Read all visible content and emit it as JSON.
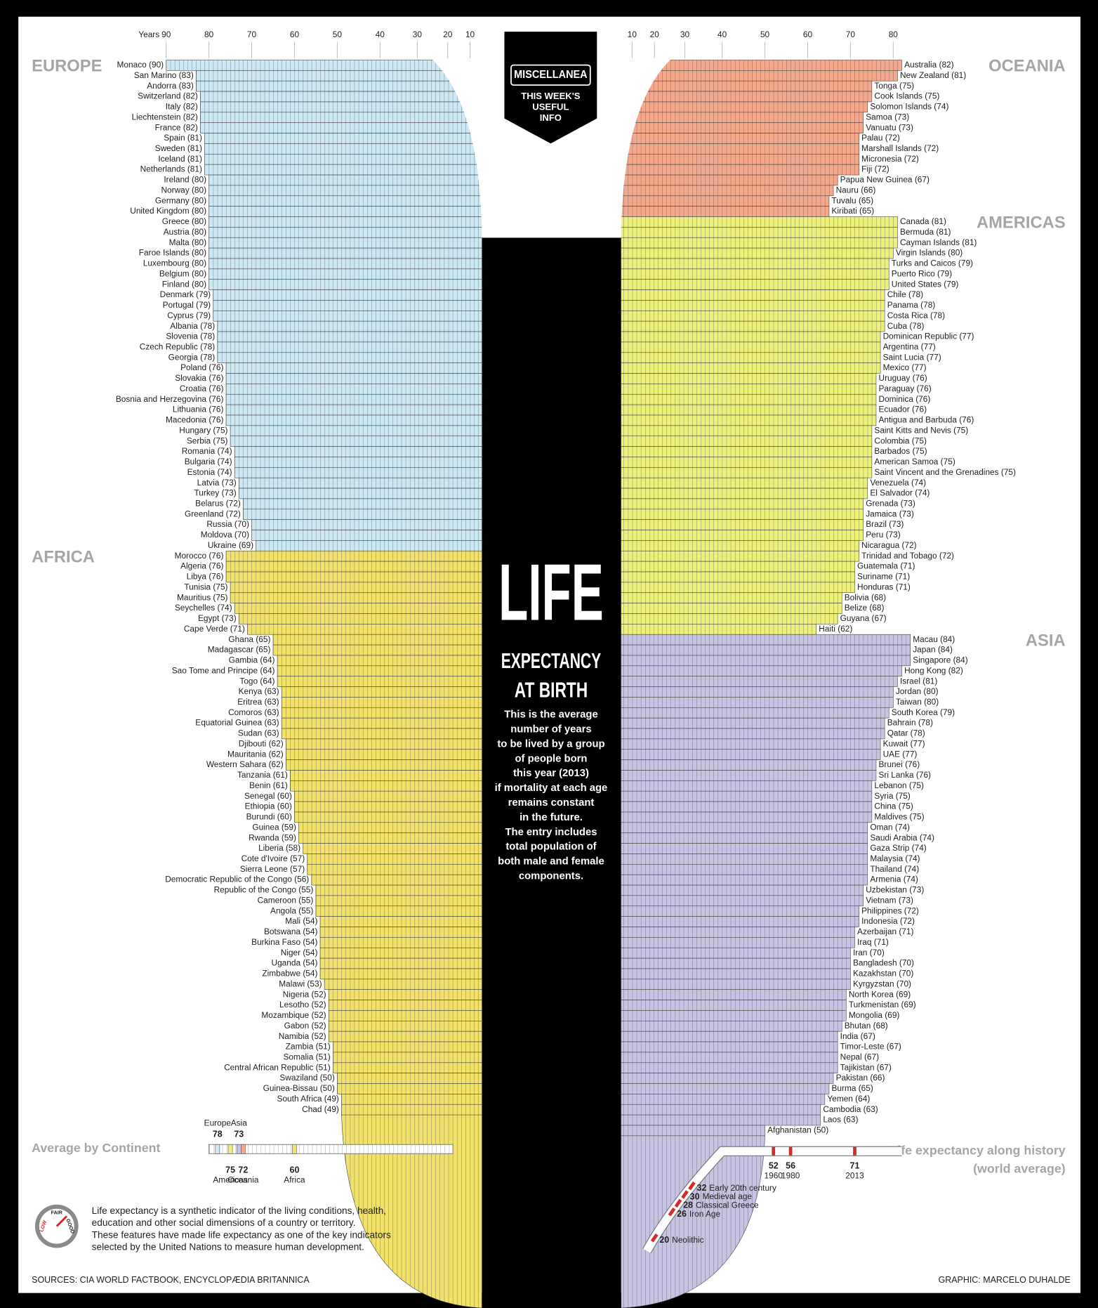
{
  "header": {
    "badge": "MISCELLANEA",
    "badge_lines": [
      "THIS WEEK'S",
      "USEFUL",
      "INFO"
    ],
    "title": "LIFE",
    "subtitle_lines": [
      "EXPECTANCY",
      "AT BIRTH"
    ],
    "description": [
      "This is the average",
      "number of years",
      "to be lived by a group",
      "of people born",
      "this year (2013)",
      "if mortality at each age",
      "remains constant",
      "in the future.",
      "The entry includes",
      "total population of",
      "both male and female",
      "components."
    ],
    "note": [
      "Life expectancy is a synthetic indicator of the living conditions, health,",
      "education and other social dimensions of a country or territory.",
      "These features have made life expectancy as one of the key indicators",
      "selected by the United Nations to measure human development."
    ],
    "gauge": [
      "LOW",
      "FAIR",
      "GOOD"
    ],
    "sources": "SOURCES: CIA WORLD FACTBOOK, ENCYCLOPÆDIA BRITANNICA",
    "credit": "GRAPHIC: MARCELO DUHALDE"
  },
  "chart_data": [
    {
      "type": "bar",
      "title": "EUROPE",
      "orientation": "left",
      "color": "#cce8f4",
      "xlabel": "Years",
      "xticks": [
        90,
        80,
        70,
        60,
        50,
        40,
        30,
        20,
        10
      ],
      "categories": [
        "Monaco (90)",
        "San Marino (83)",
        "Andorra (83)",
        "Switzerland (82)",
        "Italy (82)",
        "Liechtenstein (82)",
        "France (82)",
        "Spain (81)",
        "Sweden (81)",
        "Iceland (81)",
        "Netherlands (81)",
        "Ireland (80)",
        "Norway (80)",
        "Germany (80)",
        "United Kingdom (80)",
        "Greece (80)",
        "Austria (80)",
        "Malta (80)",
        "Faroe Islands (80)",
        "Luxembourg (80)",
        "Belgium (80)",
        "Finland (80)",
        "Denmark (79)",
        "Portugal (79)",
        "Cyprus (79)",
        "Albania (78)",
        "Slovenia (78)",
        "Czech Republic (78)",
        "Georgia (78)",
        "Poland (76)",
        "Slovakia (76)",
        "Croatia (76)",
        "Bosnia and Herzegovina (76)",
        "Lithuania (76)",
        "Macedonia (76)",
        "Hungary (75)",
        "Serbia (75)",
        "Romania (74)",
        "Bulgaria (74)",
        "Estonia (74)",
        "Latvia (73)",
        "Turkey (73)",
        "Belarus (72)",
        "Greenland (72)",
        "Russia (70)",
        "Moldova (70)",
        "Ukraine (69)"
      ],
      "values": [
        90,
        83,
        83,
        82,
        82,
        82,
        82,
        81,
        81,
        81,
        81,
        80,
        80,
        80,
        80,
        80,
        80,
        80,
        80,
        80,
        80,
        80,
        79,
        79,
        79,
        78,
        78,
        78,
        78,
        76,
        76,
        76,
        76,
        76,
        76,
        75,
        75,
        74,
        74,
        74,
        73,
        73,
        72,
        72,
        70,
        70,
        69
      ]
    },
    {
      "type": "bar",
      "title": "AFRICA",
      "orientation": "left",
      "color": "#f2e16b",
      "categories": [
        "Morocco (76)",
        "Algeria (76)",
        "Libya (76)",
        "Tunisia (75)",
        "Mauritius (75)",
        "Seychelles (74)",
        "Egypt (73)",
        "Cape Verde (71)",
        "Ghana (65)",
        "Madagascar (65)",
        "Gambia (64)",
        "Sao Tome and Principe (64)",
        "Togo (64)",
        "Kenya (63)",
        "Eritrea (63)",
        "Comoros (63)",
        "Equatorial Guinea (63)",
        "Sudan (63)",
        "Djibouti (62)",
        "Mauritania (62)",
        "Western Sahara (62)",
        "Tanzania (61)",
        "Benin (61)",
        "Senegal (60)",
        "Ethiopia (60)",
        "Burundi (60)",
        "Guinea (59)",
        "Rwanda (59)",
        "Liberia (58)",
        "Cote d'Ivoire (57)",
        "Sierra Leone (57)",
        "Democratic Republic of the Congo (56)",
        "Republic of the Congo (55)",
        "Cameroon (55)",
        "Angola (55)",
        "Mali (54)",
        "Botswana (54)",
        "Burkina Faso (54)",
        "Niger (54)",
        "Uganda (54)",
        "Zimbabwe (54)",
        "Malawi (53)",
        "Nigeria (52)",
        "Lesotho (52)",
        "Mozambique (52)",
        "Gabon (52)",
        "Namibia (52)",
        "Zambia (51)",
        "Somalia (51)",
        "Central African Republic (51)",
        "Swaziland (50)",
        "Guinea-Bissau (50)",
        "South Africa (49)",
        "Chad (49)"
      ],
      "values": [
        76,
        76,
        76,
        75,
        75,
        74,
        73,
        71,
        65,
        65,
        64,
        64,
        64,
        63,
        63,
        63,
        63,
        63,
        62,
        62,
        62,
        61,
        61,
        60,
        60,
        60,
        59,
        59,
        58,
        57,
        57,
        56,
        55,
        55,
        55,
        54,
        54,
        54,
        54,
        54,
        54,
        53,
        52,
        52,
        52,
        52,
        52,
        51,
        51,
        51,
        50,
        50,
        49,
        49
      ]
    },
    {
      "type": "bar",
      "title": "OCEANIA",
      "orientation": "right",
      "color": "#f4a98c",
      "xticks": [
        10,
        20,
        30,
        40,
        50,
        60,
        70,
        80
      ],
      "categories": [
        "Australia (82)",
        "New Zealand (81)",
        "Tonga (75)",
        "Cook Islands (75)",
        "Solomon Islands (74)",
        "Samoa (73)",
        "Vanuatu (73)",
        "Palau (72)",
        "Marshall Islands (72)",
        "Micronesia (72)",
        "Fiji (72)",
        "Papua New Guinea (67)",
        "Nauru (66)",
        "Tuvalu (65)",
        "Kiribati (65)"
      ],
      "values": [
        82,
        81,
        75,
        75,
        74,
        73,
        73,
        72,
        72,
        72,
        72,
        67,
        66,
        65,
        65
      ]
    },
    {
      "type": "bar",
      "title": "AMERICAS",
      "orientation": "right",
      "color": "#eef07c",
      "categories": [
        "Canada (81)",
        "Bermuda (81)",
        "Cayman Islands (81)",
        "Virgin Islands (80)",
        "Turks and Caicos (79)",
        "Puerto Rico (79)",
        "United States (79)",
        "Chile (78)",
        "Panama (78)",
        "Costa Rica (78)",
        "Cuba (78)",
        "Dominican Republic (77)",
        "Argentina (77)",
        "Saint Lucia (77)",
        "Mexico (77)",
        "Uruguay (76)",
        "Paraguay (76)",
        "Dominica (76)",
        "Ecuador (76)",
        "Antigua and Barbuda (76)",
        "Saint Kitts and Nevis (75)",
        "Colombia (75)",
        "Barbados (75)",
        "American Samoa (75)",
        "Saint Vincent and the Grenadines (75)",
        "Venezuela (74)",
        "El Salvador (74)",
        "Grenada (73)",
        "Jamaica (73)",
        "Brazil (73)",
        "Peru (73)",
        "Nicaragua (72)",
        "Trinidad and Tobago (72)",
        "Guatemala (71)",
        "Suriname (71)",
        "Honduras (71)",
        "Bolivia (68)",
        "Belize (68)",
        "Guyana (67)",
        "Haiti (62)"
      ],
      "values": [
        81,
        81,
        81,
        80,
        79,
        79,
        79,
        78,
        78,
        78,
        78,
        77,
        77,
        77,
        77,
        76,
        76,
        76,
        76,
        76,
        75,
        75,
        75,
        75,
        75,
        74,
        74,
        73,
        73,
        73,
        73,
        72,
        72,
        71,
        71,
        71,
        68,
        68,
        67,
        62
      ]
    },
    {
      "type": "bar",
      "title": "ASIA",
      "orientation": "right",
      "color": "#c7c3e2",
      "categories": [
        "Macau (84)",
        "Japan (84)",
        "Singapore (84)",
        "Hong Kong (82)",
        "Israel (81)",
        "Jordan (80)",
        "Taiwan (80)",
        "South Korea (79)",
        "Bahrain (78)",
        "Qatar (78)",
        "Kuwait (77)",
        "UAE (77)",
        "Brunei (76)",
        "Sri Lanka (76)",
        "Lebanon (75)",
        "Syria (75)",
        "China (75)",
        "Maldives (75)",
        "Oman (74)",
        "Saudi Arabia (74)",
        "Gaza Strip (74)",
        "Malaysia (74)",
        "Thailand (74)",
        "Armenia (74)",
        "Uzbekistan (73)",
        "Vietnam (73)",
        "Philippines (72)",
        "Indonesia (72)",
        "Azerbaijan (71)",
        "Iraq (71)",
        "Iran (70)",
        "Bangladesh (70)",
        "Kazakhstan (70)",
        "Kyrgyzstan (70)",
        "North Korea (69)",
        "Turkmenistan (69)",
        "Mongolia (69)",
        "Bhutan (68)",
        "India (67)",
        "Timor-Leste (67)",
        "Nepal (67)",
        "Tajikistan (67)",
        "Pakistan (66)",
        "Burma (65)",
        "Yemen (64)",
        "Cambodia (63)",
        "Laos (63)",
        "Afghanistan (50)"
      ],
      "values": [
        84,
        84,
        84,
        82,
        81,
        80,
        80,
        79,
        78,
        78,
        77,
        77,
        76,
        76,
        75,
        75,
        75,
        75,
        74,
        74,
        74,
        74,
        74,
        74,
        73,
        73,
        72,
        72,
        71,
        71,
        70,
        70,
        70,
        70,
        69,
        69,
        69,
        68,
        67,
        67,
        67,
        67,
        66,
        65,
        64,
        63,
        63,
        50
      ]
    },
    {
      "type": "scale",
      "title": "Average by Continent",
      "categories": [
        "Europe",
        "Asia",
        "Americas",
        "Oceania",
        "Africa"
      ],
      "values": [
        78,
        73,
        75,
        72,
        60
      ],
      "colors": [
        "#cce8f4",
        "#c7c3e2",
        "#eef07c",
        "#f4a98c",
        "#f2e16b"
      ]
    },
    {
      "type": "history",
      "title": "Life expectancy along history",
      "subtitle": "(world average)",
      "color": "#d42a2a",
      "categories": [
        "Neolithic",
        "Iron Age",
        "Classical Greece",
        "Medieval age",
        "Early 20th century",
        "1960",
        "1980",
        "2013"
      ],
      "values": [
        20,
        26,
        28,
        30,
        32,
        52,
        56,
        71
      ]
    }
  ]
}
